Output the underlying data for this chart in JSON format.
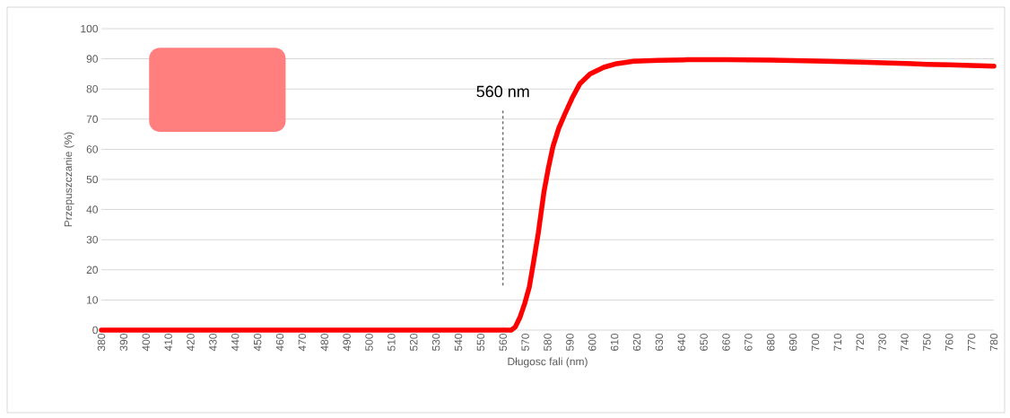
{
  "chart_data": {
    "type": "line",
    "xlabel": "Długosc fali (nm)",
    "ylabel": "Przepuszczanie  (%)",
    "xlim": [
      380,
      780
    ],
    "ylim": [
      0,
      100
    ],
    "xticks": [
      380,
      390,
      400,
      410,
      420,
      430,
      440,
      450,
      460,
      470,
      480,
      490,
      500,
      510,
      520,
      530,
      540,
      550,
      560,
      570,
      580,
      590,
      600,
      610,
      620,
      630,
      640,
      650,
      660,
      670,
      680,
      690,
      700,
      710,
      720,
      730,
      740,
      750,
      760,
      770,
      780
    ],
    "yticks": [
      0,
      10,
      20,
      30,
      40,
      50,
      60,
      70,
      80,
      90,
      100
    ],
    "grid": "y",
    "ref_lines": [
      {
        "axis": "x",
        "value": 560,
        "label": "560 nm",
        "line_style": "dashed",
        "color": "#000000"
      }
    ],
    "series": [
      {
        "color": "#ff0000",
        "x": [
          380,
          420,
          460,
          500,
          540,
          560,
          563.7,
          565.5,
          567.7,
          569.8,
          571.8,
          573.8,
          575.8,
          578.4,
          580.4,
          582.4,
          585,
          587.8,
          591,
          594.5,
          599,
          605.2,
          611,
          618.6,
          630,
          642.7,
          660,
          680,
          690,
          700,
          710,
          720,
          730,
          740,
          750,
          760,
          770,
          780
        ],
        "values": [
          0,
          0,
          0,
          0,
          0,
          0,
          0,
          1,
          4.4,
          9,
          14.3,
          23,
          32.1,
          46,
          54,
          60.9,
          67,
          71.8,
          77,
          81.8,
          85,
          87.2,
          88.4,
          89.2,
          89.5,
          89.7,
          89.7,
          89.6,
          89.4,
          89.3,
          89.1,
          88.9,
          88.7,
          88.5,
          88.2,
          88,
          87.8,
          87.6
        ]
      }
    ]
  }
}
